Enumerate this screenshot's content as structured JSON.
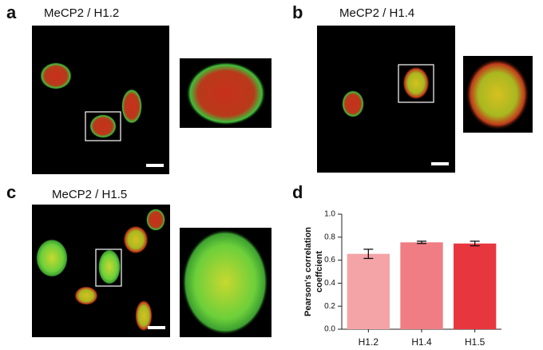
{
  "panels": [
    {
      "label": "a",
      "title": "MeCP2 / H1.2"
    },
    {
      "label": "b",
      "title": "MeCP2 / H1.4"
    },
    {
      "label": "c",
      "title": "MeCP2 / H1.5"
    },
    {
      "label": "d"
    }
  ],
  "chart_data": {
    "type": "bar",
    "ylabel": [
      "Pearson's correlation",
      "coeffcient"
    ],
    "categories": [
      "H1.2",
      "H1.4",
      "H1.5"
    ],
    "values": [
      0.655,
      0.755,
      0.745
    ],
    "errors": [
      0.04,
      0.01,
      0.02
    ],
    "colors": [
      "#f4a3a7",
      "#f07d84",
      "#e8363f"
    ],
    "ylim": [
      0,
      1
    ],
    "yticks": [
      {
        "value": 0,
        "label": "0.0"
      },
      {
        "value": 0.2,
        "label": "0.2"
      },
      {
        "value": 0.4,
        "label": "0.4"
      },
      {
        "value": 0.6,
        "label": "0.6"
      },
      {
        "value": 0.8,
        "label": "0.8"
      },
      {
        "value": 1,
        "label": "1.0"
      }
    ]
  }
}
